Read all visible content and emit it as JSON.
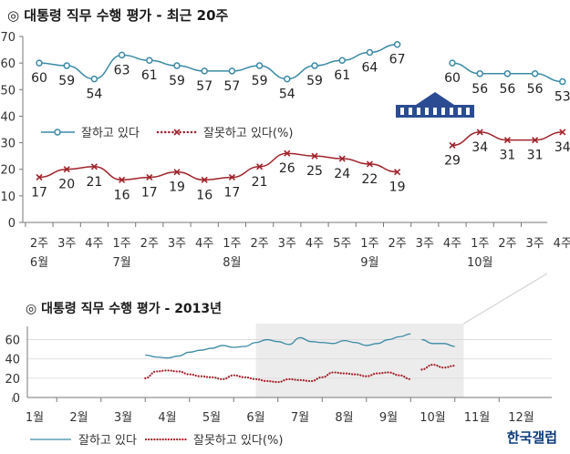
{
  "titles": {
    "main": "◎  대통령 직무 수행 평가 - 최근 20주",
    "sub": "◎  대통령 직무 수행 평가 - 2013년"
  },
  "logo": "한국갤럽",
  "colors": {
    "approve": "#3a8aa5",
    "disapprove": "#a1232b",
    "grid": "#d9d9d9",
    "shade": "#ececec"
  },
  "chart_data": [
    {
      "type": "line",
      "title": "대통령 직무 수행 평가 - 최근 20주",
      "ylim": [
        0,
        70
      ],
      "yticks": [
        0,
        10,
        20,
        30,
        40,
        50,
        60,
        70
      ],
      "categories": [
        "2주",
        "3주",
        "4주",
        "1주",
        "2주",
        "3주",
        "4주",
        "1주",
        "2주",
        "3주",
        "4주",
        "5주",
        "1주",
        "2주",
        "3주",
        "4주",
        "1주",
        "2주",
        "3주",
        "4주"
      ],
      "month_labels": [
        {
          "index": 0,
          "label": "6월"
        },
        {
          "index": 3,
          "label": "7월"
        },
        {
          "index": 7,
          "label": "8월"
        },
        {
          "index": 12,
          "label": "9월"
        },
        {
          "index": 16,
          "label": "10월"
        }
      ],
      "series": [
        {
          "name": "잘하고 있다",
          "values": [
            60,
            59,
            54,
            63,
            61,
            59,
            57,
            57,
            59,
            54,
            59,
            61,
            64,
            67,
            null,
            60,
            56,
            56,
            56,
            53
          ]
        },
        {
          "name": "잘못하고 있다(%)",
          "values": [
            17,
            20,
            21,
            16,
            17,
            19,
            16,
            17,
            21,
            26,
            25,
            24,
            22,
            19,
            null,
            29,
            34,
            31,
            31,
            34
          ]
        }
      ],
      "legend": "center-left"
    },
    {
      "type": "line",
      "title": "대통령 직무 수행 평가 - 2013년",
      "ylim": [
        0,
        70
      ],
      "yticks": [
        0,
        20,
        40,
        60
      ],
      "x_labels": [
        "1월",
        "2월",
        "3월",
        "4월",
        "5월",
        "6월",
        "7월",
        "8월",
        "9월",
        "10월",
        "11월",
        "12월"
      ],
      "highlight_range": [
        6,
        10.7
      ],
      "series": [
        {
          "name": "잘하고 있다",
          "x": [
            3.5,
            3.75,
            4,
            4.25,
            4.5,
            4.75,
            5,
            5.25,
            5.5,
            5.75,
            6,
            6.25,
            6.5,
            6.75,
            7,
            7.25,
            7.5,
            7.75,
            8,
            8.25,
            8.5,
            8.75,
            9,
            9.25,
            9.5,
            9.75,
            10,
            10.25,
            10.5
          ],
          "values": [
            44,
            42,
            41,
            43,
            47,
            49,
            51,
            54,
            52,
            53,
            57,
            60,
            58,
            55,
            62,
            58,
            57,
            56,
            59,
            57,
            54,
            56,
            60,
            63,
            66,
            60,
            56,
            56,
            53
          ]
        },
        {
          "name": "잘못하고 있다(%)",
          "x": [
            3.5,
            3.75,
            4,
            4.25,
            4.5,
            4.75,
            5,
            5.25,
            5.5,
            5.75,
            6,
            6.25,
            6.5,
            6.75,
            7,
            7.25,
            7.5,
            7.75,
            8,
            8.25,
            8.5,
            8.75,
            9,
            9.25,
            9.5,
            9.75,
            10,
            10.25,
            10.5
          ],
          "values": [
            20,
            27,
            28,
            27,
            24,
            22,
            21,
            19,
            23,
            21,
            19,
            17,
            16,
            19,
            18,
            17,
            21,
            26,
            25,
            24,
            22,
            25,
            26,
            23,
            19,
            29,
            34,
            31,
            33
          ]
        }
      ],
      "legend": "bottom"
    }
  ]
}
